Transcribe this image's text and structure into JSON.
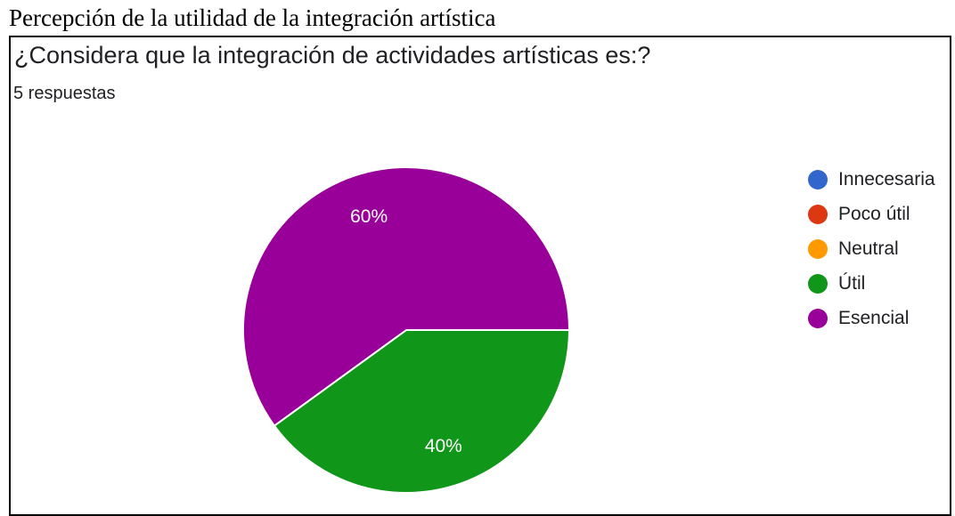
{
  "caption": "Percepción de la utilidad de la integración artística",
  "question": "¿Considera que la integración de actividades artísticas es:?",
  "responses": "5 respuestas",
  "chart_data": {
    "type": "pie",
    "title": "¿Considera que la integración de actividades artísticas es:?",
    "categories": [
      "Innecesaria",
      "Poco útil",
      "Neutral",
      "Útil",
      "Esencial"
    ],
    "values": [
      0,
      0,
      0,
      40,
      60
    ],
    "labels": [
      "",
      "",
      "",
      "40%",
      "60%"
    ],
    "colors": [
      "#3366cc",
      "#dc3912",
      "#ff9900",
      "#109618",
      "#990099"
    ],
    "legend_position": "right"
  },
  "legend": [
    {
      "label": "Innecesaria",
      "color": "#3366cc"
    },
    {
      "label": "Poco útil",
      "color": "#dc3912"
    },
    {
      "label": "Neutral",
      "color": "#ff9900"
    },
    {
      "label": "Útil",
      "color": "#109618"
    },
    {
      "label": "Esencial",
      "color": "#990099"
    }
  ]
}
